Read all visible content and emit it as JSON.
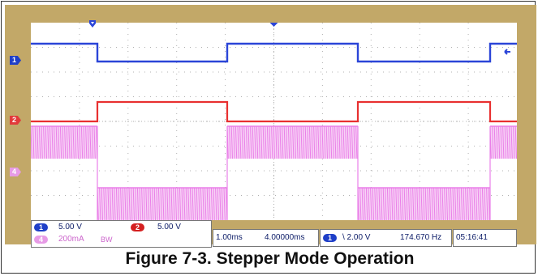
{
  "channels": [
    {
      "id": "1",
      "color": "#1f3fc8",
      "scale": "5.00 V"
    },
    {
      "id": "2",
      "color": "#e23a3a",
      "scale": "5.00 V"
    },
    {
      "id": "4",
      "color": "#e79be6",
      "scale": "200mA",
      "note": "BW"
    }
  ],
  "timebase": {
    "scale": "1.00ms",
    "position": "4.00000ms"
  },
  "trigger": {
    "channel": "1",
    "level": "\\ 2.00 V",
    "frequency": "174.670 Hz"
  },
  "clock": "05:16:41",
  "caption": "Figure 7-3. Stepper Mode Operation",
  "colors": {
    "bezel": "#c2a868",
    "screen": "#ffffff",
    "grid": "#b0b0b0"
  },
  "icons": [
    "trigger-position-icon",
    "time-reference-icon",
    "offscreen-arrow-icon"
  ]
}
